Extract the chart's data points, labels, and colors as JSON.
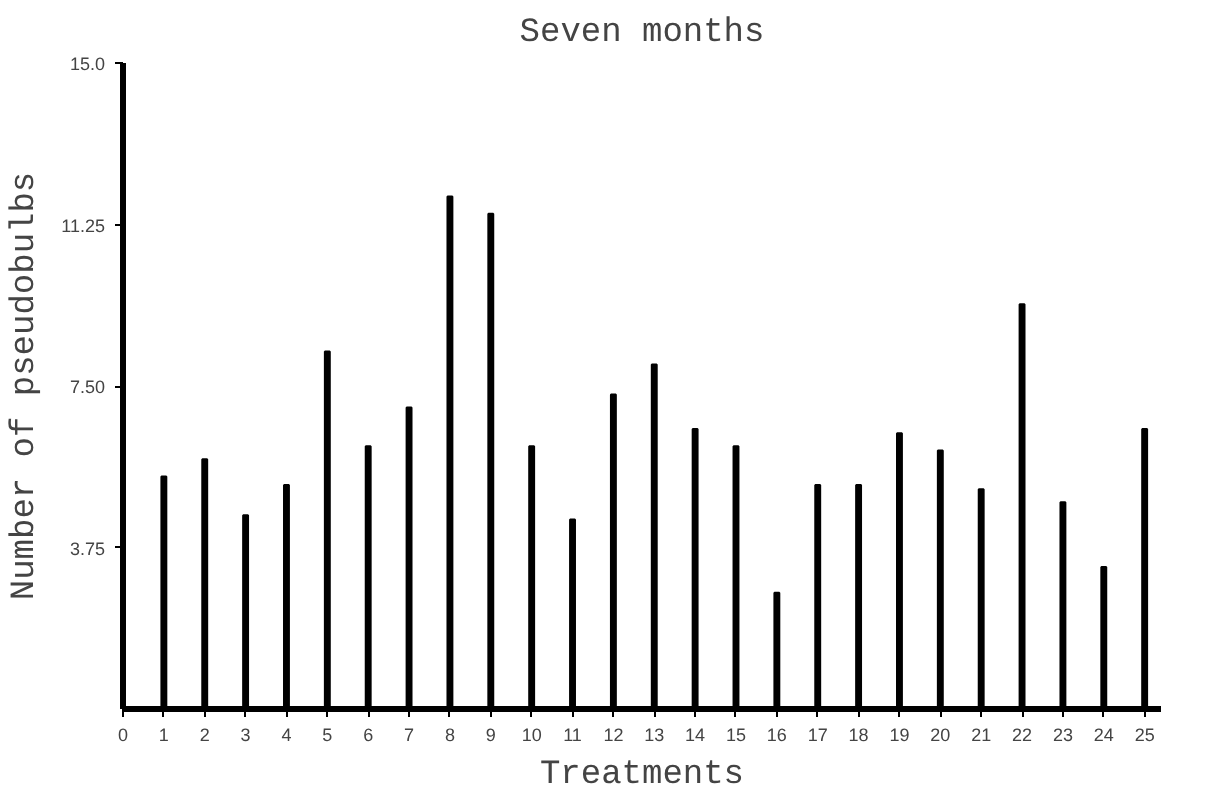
{
  "chart_data": {
    "type": "bar",
    "title": "Seven months",
    "xlabel": "Treatments",
    "ylabel": "Number of pseudobulbs",
    "x": [
      1,
      2,
      3,
      4,
      5,
      6,
      7,
      8,
      9,
      10,
      11,
      12,
      13,
      14,
      15,
      16,
      17,
      18,
      19,
      20,
      21,
      22,
      23,
      24,
      25
    ],
    "values": [
      5.4,
      5.8,
      4.5,
      5.2,
      8.3,
      6.1,
      7.0,
      11.9,
      11.5,
      6.1,
      4.4,
      7.3,
      8.0,
      6.5,
      6.1,
      2.7,
      5.2,
      5.2,
      6.4,
      6.0,
      5.1,
      9.4,
      4.8,
      3.3,
      6.5
    ],
    "color": "#000000",
    "xlim": [
      0,
      25.4
    ],
    "xticks": [
      0,
      1,
      2,
      3,
      4,
      5,
      6,
      7,
      8,
      9,
      10,
      11,
      12,
      13,
      14,
      15,
      16,
      17,
      18,
      19,
      20,
      21,
      22,
      23,
      24,
      25
    ],
    "ylim": [
      0,
      15
    ],
    "yticks": [
      {
        "value": 3.75,
        "label": "3.75"
      },
      {
        "value": 7.5,
        "label": "7.50"
      },
      {
        "value": 11.25,
        "label": "11.25"
      },
      {
        "value": 15,
        "label": "15.0"
      }
    ],
    "grid": false
  }
}
